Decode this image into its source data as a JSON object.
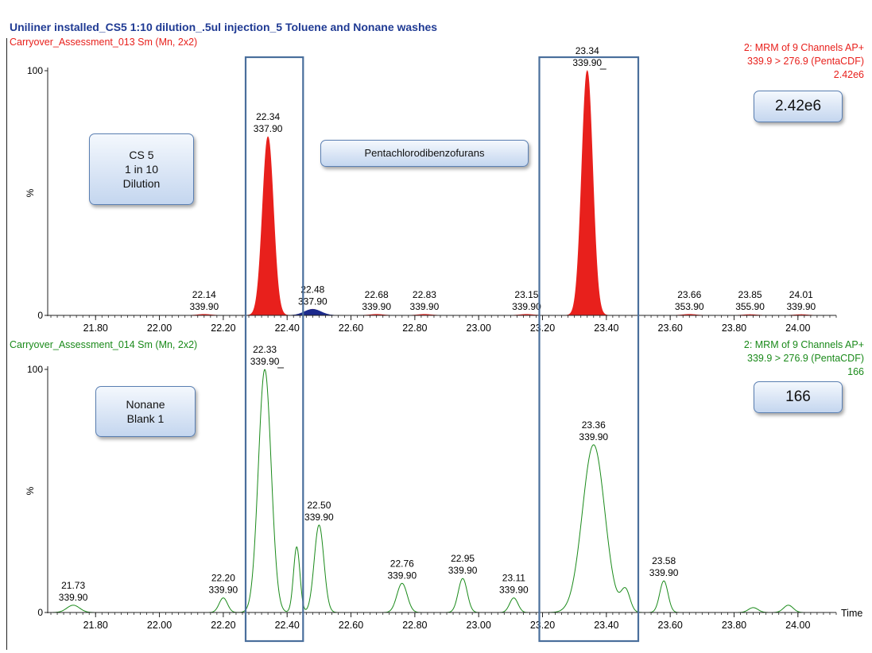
{
  "title": "Uniliner installed_CS5 1:10 dilution_.5ul injection_5 Toluene and Nonane washes",
  "panels": [
    {
      "sample": "Carryover_Assessment_013 Sm (Mn, 2x2)",
      "channel_line1": "2: MRM of 9 Channels AP+",
      "channel_line2": "339.9 > 276.9 (PentaCDF)",
      "intensity": "2.42e6",
      "y_axis_label": "%",
      "y_ticks": [
        "100",
        "0"
      ]
    },
    {
      "sample": "Carryover_Assessment_014 Sm (Mn, 2x2)",
      "channel_line1": "2: MRM of 9 Channels AP+",
      "channel_line2": "339.9 > 276.9 (PentaCDF)",
      "intensity": "166",
      "y_axis_label": "%",
      "y_ticks": [
        "100",
        "0"
      ],
      "x_axis_label": "Time"
    }
  ],
  "callouts": {
    "cs5": "CS 5\n1 in 10\nDilution",
    "compound": "Pentachlorodibenzofurans",
    "intensity_top": "2.42e6",
    "nonane": "Nonane\nBlank 1",
    "intensity_bottom": "166"
  },
  "chart_data": [
    {
      "type": "area",
      "title": "Carryover_Assessment_013 Sm (Mn, 2x2)",
      "xlabel": "",
      "ylabel": "%",
      "xlim": [
        21.65,
        24.12
      ],
      "ylim": [
        0,
        100
      ],
      "x_ticks": [
        "21.80",
        "22.00",
        "22.20",
        "22.40",
        "22.60",
        "22.80",
        "23.00",
        "23.20",
        "23.40",
        "23.60",
        "23.80",
        "24.00"
      ],
      "color": "#e8201c",
      "secondary_color": "#1c2a8c",
      "peaks": [
        {
          "rt": 22.14,
          "height": 0.4,
          "width": 0.02,
          "label_rt": "22.14",
          "label_mz": "339.90"
        },
        {
          "rt": 22.34,
          "height": 73,
          "width": 0.017,
          "label_rt": "22.34",
          "label_mz": "337.90"
        },
        {
          "rt": 22.48,
          "height": 2.5,
          "width": 0.02,
          "label_rt": "22.48",
          "label_mz": "337.90"
        },
        {
          "rt": 22.68,
          "height": 0.4,
          "width": 0.02,
          "label_rt": "22.68",
          "label_mz": "339.90"
        },
        {
          "rt": 22.83,
          "height": 0.4,
          "width": 0.02,
          "label_rt": "22.83",
          "label_mz": "339.90"
        },
        {
          "rt": 23.15,
          "height": 0.4,
          "width": 0.02,
          "label_rt": "23.15",
          "label_mz": "339.90"
        },
        {
          "rt": 23.34,
          "height": 100,
          "width": 0.017,
          "label_rt": "23.34",
          "label_mz": "339.90"
        },
        {
          "rt": 23.66,
          "height": 0.4,
          "width": 0.02,
          "label_rt": "23.66",
          "label_mz": "353.90"
        },
        {
          "rt": 23.85,
          "height": 0.3,
          "width": 0.02,
          "label_rt": "23.85",
          "label_mz": "355.90"
        },
        {
          "rt": 24.01,
          "height": 0.3,
          "width": 0.02,
          "label_rt": "24.01",
          "label_mz": "339.90"
        }
      ]
    },
    {
      "type": "line",
      "title": "Carryover_Assessment_014 Sm (Mn, 2x2)",
      "xlabel": "Time",
      "ylabel": "%",
      "xlim": [
        21.65,
        24.12
      ],
      "ylim": [
        0,
        100
      ],
      "x_ticks": [
        "21.80",
        "22.00",
        "22.20",
        "22.40",
        "22.60",
        "22.80",
        "23.00",
        "23.20",
        "23.40",
        "23.60",
        "23.80",
        "24.00"
      ],
      "color": "#1a8a1a",
      "peaks": [
        {
          "rt": 21.73,
          "height": 3,
          "width": 0.02,
          "label_rt": "21.73",
          "label_mz": "339.90"
        },
        {
          "rt": 22.2,
          "height": 6,
          "width": 0.013,
          "label_rt": "22.20",
          "label_mz": "339.90"
        },
        {
          "rt": 22.33,
          "height": 100,
          "width": 0.02,
          "label_rt": "22.33",
          "label_mz": "339.90"
        },
        {
          "rt": 22.43,
          "height": 27,
          "width": 0.01,
          "label_rt": "",
          "label_mz": ""
        },
        {
          "rt": 22.5,
          "height": 36,
          "width": 0.015,
          "label_rt": "22.50",
          "label_mz": "339.90"
        },
        {
          "rt": 22.76,
          "height": 12,
          "width": 0.016,
          "label_rt": "22.76",
          "label_mz": "339.90"
        },
        {
          "rt": 22.95,
          "height": 14,
          "width": 0.014,
          "label_rt": "22.95",
          "label_mz": "339.90"
        },
        {
          "rt": 23.11,
          "height": 6,
          "width": 0.013,
          "label_rt": "23.11",
          "label_mz": "339.90"
        },
        {
          "rt": 23.36,
          "height": 69,
          "width": 0.035,
          "label_rt": "23.36",
          "label_mz": "339.90"
        },
        {
          "rt": 23.46,
          "height": 9,
          "width": 0.014,
          "label_rt": "",
          "label_mz": ""
        },
        {
          "rt": 23.58,
          "height": 13,
          "width": 0.013,
          "label_rt": "23.58",
          "label_mz": "339.90"
        },
        {
          "rt": 23.86,
          "height": 2,
          "width": 0.015,
          "label_rt": "",
          "label_mz": ""
        },
        {
          "rt": 23.97,
          "height": 3,
          "width": 0.015,
          "label_rt": "",
          "label_mz": ""
        }
      ]
    }
  ],
  "highlight_windows": [
    {
      "x_start": 22.27,
      "x_end": 22.45
    },
    {
      "x_start": 23.19,
      "x_end": 23.5
    }
  ]
}
